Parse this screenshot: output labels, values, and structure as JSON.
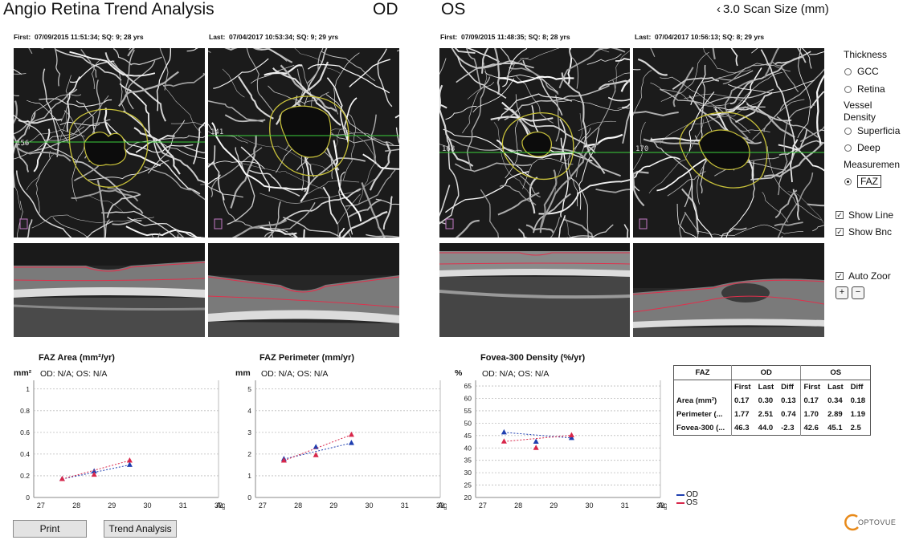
{
  "header": {
    "title": "Angio Retina Trend Analysis",
    "od": "OD",
    "os": "OS",
    "scan_size": "3.0 Scan Size (mm)",
    "scan_size_prefix": "‹"
  },
  "scans": {
    "od_first": "First:  07/09/2015 11:51:34; SQ: 9; 28 yrs",
    "od_last": "Last:  07/04/2017 10:53:34; SQ: 9; 29 yrs",
    "os_first": "First:  07/09/2015 11:48:35; SQ: 8; 28 yrs",
    "os_last": "Last:  07/04/2017 10:56:13; SQ: 8; 29 yrs",
    "line_labels": [
      "156",
      "141",
      "168",
      "170"
    ]
  },
  "controls": {
    "thickness_label": "Thickness",
    "gcc": "GCC",
    "retina": "Retina",
    "vessel_density_label": "Vessel\nDensity",
    "superficial": "Superficia",
    "deep": "Deep",
    "measurement_label": "Measuremen",
    "faz": "FAZ",
    "show_lines": "Show Line",
    "show_bnd": "Show Bnc",
    "auto_zoom": "Auto Zoor",
    "zoom_in": "+",
    "zoom_out": "−"
  },
  "charts": {
    "faz_area": {
      "title": "FAZ Area (mm²/yr)",
      "note": "OD: N/A; OS: N/A",
      "unit": "mm²"
    },
    "faz_perimeter": {
      "title": "FAZ Perimeter (mm/yr)",
      "note": "OD: N/A; OS: N/A",
      "unit": "mm"
    },
    "fovea_density": {
      "title": "Fovea-300 Density (%/yr)",
      "note": "OD: N/A; OS: N/A",
      "unit": "%"
    },
    "legend_od": "OD",
    "legend_os": "OS"
  },
  "colors": {
    "od": "#1f3fb0",
    "os": "#d8274a",
    "faz_outline": "#c9c23a",
    "scan_line": "#3bd13b"
  },
  "chart_data": [
    {
      "type": "scatter",
      "title": "FAZ Area (mm²/yr)",
      "xlabel": "Age",
      "ylabel": "mm²",
      "x_ticks": [
        "27",
        "28",
        "29",
        "30",
        "31",
        "32"
      ],
      "y_ticks": [
        "0",
        "0.2",
        "0.4",
        "0.6",
        "0.8",
        "1"
      ],
      "xlim": [
        26.8,
        32
      ],
      "ylim": [
        0,
        1.05
      ],
      "grid": true,
      "series": [
        {
          "name": "OD",
          "x": [
            27.6,
            28.5,
            29.5
          ],
          "y": [
            0.17,
            0.24,
            0.3
          ]
        },
        {
          "name": "OS",
          "x": [
            27.6,
            28.5,
            29.5
          ],
          "y": [
            0.17,
            0.21,
            0.34
          ]
        }
      ]
    },
    {
      "type": "scatter",
      "title": "FAZ Perimeter (mm/yr)",
      "xlabel": "Age",
      "ylabel": "mm",
      "x_ticks": [
        "27",
        "28",
        "29",
        "30",
        "31",
        "32"
      ],
      "y_ticks": [
        "0",
        "1",
        "2",
        "3",
        "4",
        "5"
      ],
      "xlim": [
        26.8,
        32
      ],
      "ylim": [
        0,
        5.25
      ],
      "grid": true,
      "series": [
        {
          "name": "OD",
          "x": [
            27.6,
            28.5,
            29.5
          ],
          "y": [
            1.77,
            2.32,
            2.51
          ]
        },
        {
          "name": "OS",
          "x": [
            27.6,
            28.5,
            29.5
          ],
          "y": [
            1.7,
            1.95,
            2.89
          ]
        }
      ]
    },
    {
      "type": "scatter",
      "title": "Fovea-300 Density (%/yr)",
      "xlabel": "Age",
      "ylabel": "%",
      "x_ticks": [
        "27",
        "28",
        "29",
        "30",
        "31",
        "32"
      ],
      "y_ticks": [
        "20",
        "25",
        "30",
        "35",
        "40",
        "45",
        "50",
        "55",
        "60",
        "65"
      ],
      "xlim": [
        26.8,
        32
      ],
      "ylim": [
        20,
        66
      ],
      "grid": true,
      "series": [
        {
          "name": "OD",
          "x": [
            27.6,
            28.5,
            29.5
          ],
          "y": [
            46.3,
            42.5,
            44.0
          ]
        },
        {
          "name": "OS",
          "x": [
            27.6,
            28.5,
            29.5
          ],
          "y": [
            42.6,
            40.0,
            45.1
          ]
        }
      ]
    }
  ],
  "table": {
    "header": [
      "FAZ",
      "OD",
      "OS"
    ],
    "subheader": [
      "First",
      "Last",
      "Diff",
      "First",
      "Last",
      "Diff"
    ],
    "rows": [
      {
        "label": "Area (mm²)",
        "values": [
          "0.17",
          "0.30",
          "0.13",
          "0.17",
          "0.34",
          "0.18"
        ]
      },
      {
        "label": "Perimeter (...",
        "values": [
          "1.77",
          "2.51",
          "0.74",
          "1.70",
          "2.89",
          "1.19"
        ]
      },
      {
        "label": "Fovea-300 (...",
        "values": [
          "46.3",
          "44.0",
          "-2.3",
          "42.6",
          "45.1",
          "2.5"
        ]
      }
    ]
  },
  "buttons": {
    "print": "Print",
    "trend": "Trend Analysis"
  },
  "brand": "OPTOVUE"
}
